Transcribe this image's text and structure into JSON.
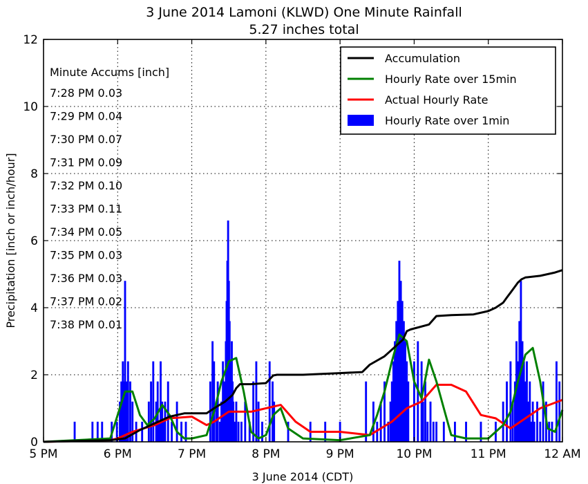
{
  "chart_data": {
    "type": "bar",
    "title": "3 June 2014 Lamoni (KLWD) One Minute Rainfall",
    "subtitle": "5.27 inches total",
    "xlabel": "3 June 2014 (CDT)",
    "ylabel": "Precipitation [inch or inch/hour]",
    "xlim": [
      17,
      24
    ],
    "ylim": [
      0,
      12
    ],
    "grid": true,
    "legend_position": "top-right",
    "x_ticks": [
      "5 PM",
      "6 PM",
      "7 PM",
      "8 PM",
      "9 PM",
      "10 PM",
      "11 PM",
      "12 AM"
    ],
    "x_tick_values": [
      17,
      18,
      19,
      20,
      21,
      22,
      23,
      24
    ],
    "y_ticks": [
      "0",
      "2",
      "4",
      "6",
      "8",
      "10",
      "12"
    ],
    "y_tick_values": [
      0,
      2,
      4,
      6,
      8,
      10,
      12
    ],
    "annotation": {
      "header": "Minute Accums [inch]",
      "lines": [
        "7:28 PM 0.03",
        "7:29 PM 0.04",
        "7:30 PM 0.07",
        "7:31 PM 0.09",
        "7:32 PM 0.10",
        "7:33 PM 0.11",
        "7:34 PM 0.05",
        "7:35 PM 0.03",
        "7:36 PM 0.03",
        "7:37 PM 0.02",
        "7:38 PM 0.01"
      ]
    },
    "series": [
      {
        "name": "Accumulation",
        "type": "line",
        "color": "#000000",
        "x": [
          17.0,
          17.9,
          18.1,
          18.3,
          18.5,
          18.7,
          18.9,
          19.2,
          19.3,
          19.45,
          19.55,
          19.6,
          19.65,
          19.8,
          20.0,
          20.1,
          20.15,
          20.5,
          21.0,
          21.3,
          21.4,
          21.6,
          21.75,
          21.85,
          21.9,
          21.95,
          22.2,
          22.3,
          22.5,
          22.8,
          23.0,
          23.1,
          23.2,
          23.25,
          23.3,
          23.35,
          23.4,
          23.45,
          23.5,
          23.7,
          23.9,
          24.0
        ],
        "y": [
          0.0,
          0.05,
          0.1,
          0.35,
          0.55,
          0.75,
          0.85,
          0.85,
          1.0,
          1.2,
          1.4,
          1.6,
          1.72,
          1.72,
          1.75,
          1.98,
          2.0,
          2.0,
          2.05,
          2.08,
          2.3,
          2.55,
          2.85,
          3.05,
          3.3,
          3.35,
          3.5,
          3.75,
          3.78,
          3.8,
          3.9,
          4.0,
          4.15,
          4.3,
          4.45,
          4.6,
          4.75,
          4.85,
          4.9,
          4.95,
          5.05,
          5.12
        ]
      },
      {
        "name": "Hourly Rate over 15min",
        "type": "line",
        "color": "#008000",
        "x": [
          17.0,
          17.9,
          18.0,
          18.1,
          18.2,
          18.3,
          18.4,
          18.5,
          18.6,
          18.7,
          18.8,
          18.9,
          19.0,
          19.2,
          19.3,
          19.4,
          19.5,
          19.6,
          19.7,
          19.8,
          19.9,
          20.0,
          20.1,
          20.2,
          20.3,
          20.5,
          21.0,
          21.4,
          21.5,
          21.6,
          21.7,
          21.8,
          21.9,
          22.0,
          22.1,
          22.2,
          22.3,
          22.4,
          22.5,
          22.7,
          23.0,
          23.2,
          23.3,
          23.4,
          23.5,
          23.6,
          23.7,
          23.8,
          23.9,
          24.0
        ],
        "y": [
          0.0,
          0.1,
          0.8,
          1.5,
          1.5,
          0.8,
          0.5,
          0.7,
          1.1,
          0.8,
          0.3,
          0.1,
          0.1,
          0.2,
          0.9,
          1.8,
          2.4,
          2.5,
          1.5,
          0.3,
          0.1,
          0.2,
          0.8,
          1.0,
          0.4,
          0.1,
          0.05,
          0.2,
          0.8,
          1.5,
          2.4,
          3.2,
          3.0,
          1.8,
          1.3,
          2.45,
          1.8,
          1.0,
          0.2,
          0.1,
          0.1,
          0.5,
          0.9,
          1.8,
          2.6,
          2.8,
          1.8,
          0.4,
          0.3,
          0.95
        ]
      },
      {
        "name": "Actual Hourly Rate",
        "type": "line",
        "color": "#ff0000",
        "x": [
          17.0,
          17.9,
          18.0,
          18.2,
          18.5,
          18.7,
          19.0,
          19.2,
          19.3,
          19.5,
          19.7,
          19.8,
          20.0,
          20.2,
          20.4,
          20.6,
          20.8,
          21.0,
          21.4,
          21.7,
          21.9,
          22.1,
          22.3,
          22.5,
          22.7,
          22.9,
          23.1,
          23.3,
          23.5,
          23.7,
          24.0
        ],
        "y": [
          0.0,
          0.05,
          0.1,
          0.3,
          0.5,
          0.7,
          0.75,
          0.5,
          0.6,
          0.9,
          0.9,
          0.9,
          1.0,
          1.1,
          0.6,
          0.3,
          0.3,
          0.3,
          0.2,
          0.6,
          1.0,
          1.2,
          1.7,
          1.7,
          1.5,
          0.8,
          0.7,
          0.4,
          0.7,
          1.0,
          1.25
        ]
      },
      {
        "name": "Hourly Rate over 1min",
        "type": "bar",
        "color": "#0000ff",
        "x": [
          17.42,
          17.66,
          17.73,
          17.79,
          17.92,
          17.99,
          18.03,
          18.05,
          18.07,
          18.09,
          18.1,
          18.12,
          18.14,
          18.17,
          18.2,
          18.25,
          18.33,
          18.42,
          18.45,
          18.48,
          18.52,
          18.54,
          18.56,
          18.58,
          18.6,
          18.62,
          18.64,
          18.68,
          18.73,
          18.8,
          18.86,
          18.92,
          19.25,
          19.28,
          19.3,
          19.33,
          19.35,
          19.38,
          19.4,
          19.42,
          19.44,
          19.46,
          19.47,
          19.48,
          19.49,
          19.5,
          19.51,
          19.52,
          19.53,
          19.54,
          19.55,
          19.56,
          19.58,
          19.6,
          19.63,
          19.67,
          19.72,
          19.78,
          19.83,
          19.87,
          19.9,
          19.95,
          20.05,
          20.09,
          20.11,
          20.3,
          20.6,
          20.8,
          21.0,
          21.35,
          21.45,
          21.5,
          21.55,
          21.6,
          21.65,
          21.68,
          21.7,
          21.72,
          21.74,
          21.76,
          21.78,
          21.8,
          21.82,
          21.84,
          21.86,
          21.88,
          21.9,
          21.92,
          22.0,
          22.05,
          22.1,
          22.12,
          22.15,
          22.18,
          22.22,
          22.26,
          22.3,
          22.4,
          22.55,
          22.7,
          22.9,
          23.1,
          23.2,
          23.25,
          23.3,
          23.33,
          23.36,
          23.38,
          23.4,
          23.42,
          23.44,
          23.46,
          23.48,
          23.5,
          23.52,
          23.54,
          23.56,
          23.58,
          23.6,
          23.62,
          23.66,
          23.7,
          23.74,
          23.78,
          23.82,
          23.86,
          23.92,
          23.96
        ],
        "y": [
          0.6,
          0.6,
          0.6,
          0.6,
          0.6,
          0.6,
          1.2,
          1.8,
          2.4,
          1.8,
          4.8,
          1.8,
          2.4,
          1.8,
          1.2,
          0.6,
          0.6,
          1.2,
          1.8,
          2.4,
          1.2,
          1.8,
          0.6,
          2.4,
          1.2,
          0.6,
          1.2,
          1.8,
          0.6,
          1.2,
          0.6,
          0.6,
          1.8,
          3.0,
          2.4,
          1.2,
          1.8,
          0.6,
          1.2,
          2.4,
          1.8,
          3.0,
          4.2,
          5.4,
          6.6,
          4.8,
          3.6,
          2.4,
          1.8,
          3.0,
          1.8,
          1.2,
          0.6,
          1.2,
          0.6,
          0.6,
          1.2,
          0.6,
          1.8,
          2.4,
          1.2,
          0.6,
          2.4,
          1.8,
          1.2,
          0.6,
          0.6,
          0.6,
          0.6,
          1.8,
          1.2,
          0.6,
          1.2,
          1.8,
          0.6,
          1.2,
          1.8,
          2.4,
          3.0,
          3.6,
          4.2,
          5.4,
          4.8,
          4.2,
          3.6,
          3.0,
          2.4,
          1.8,
          2.4,
          3.0,
          2.4,
          1.2,
          1.8,
          0.6,
          1.2,
          0.6,
          0.6,
          0.6,
          0.6,
          0.6,
          0.6,
          0.6,
          1.2,
          1.8,
          2.4,
          1.2,
          1.8,
          3.0,
          2.4,
          3.6,
          4.8,
          3.0,
          2.4,
          1.8,
          2.4,
          1.2,
          1.8,
          0.6,
          1.2,
          0.6,
          1.2,
          0.6,
          1.8,
          1.2,
          0.6,
          0.6,
          2.4,
          1.8
        ]
      }
    ]
  }
}
